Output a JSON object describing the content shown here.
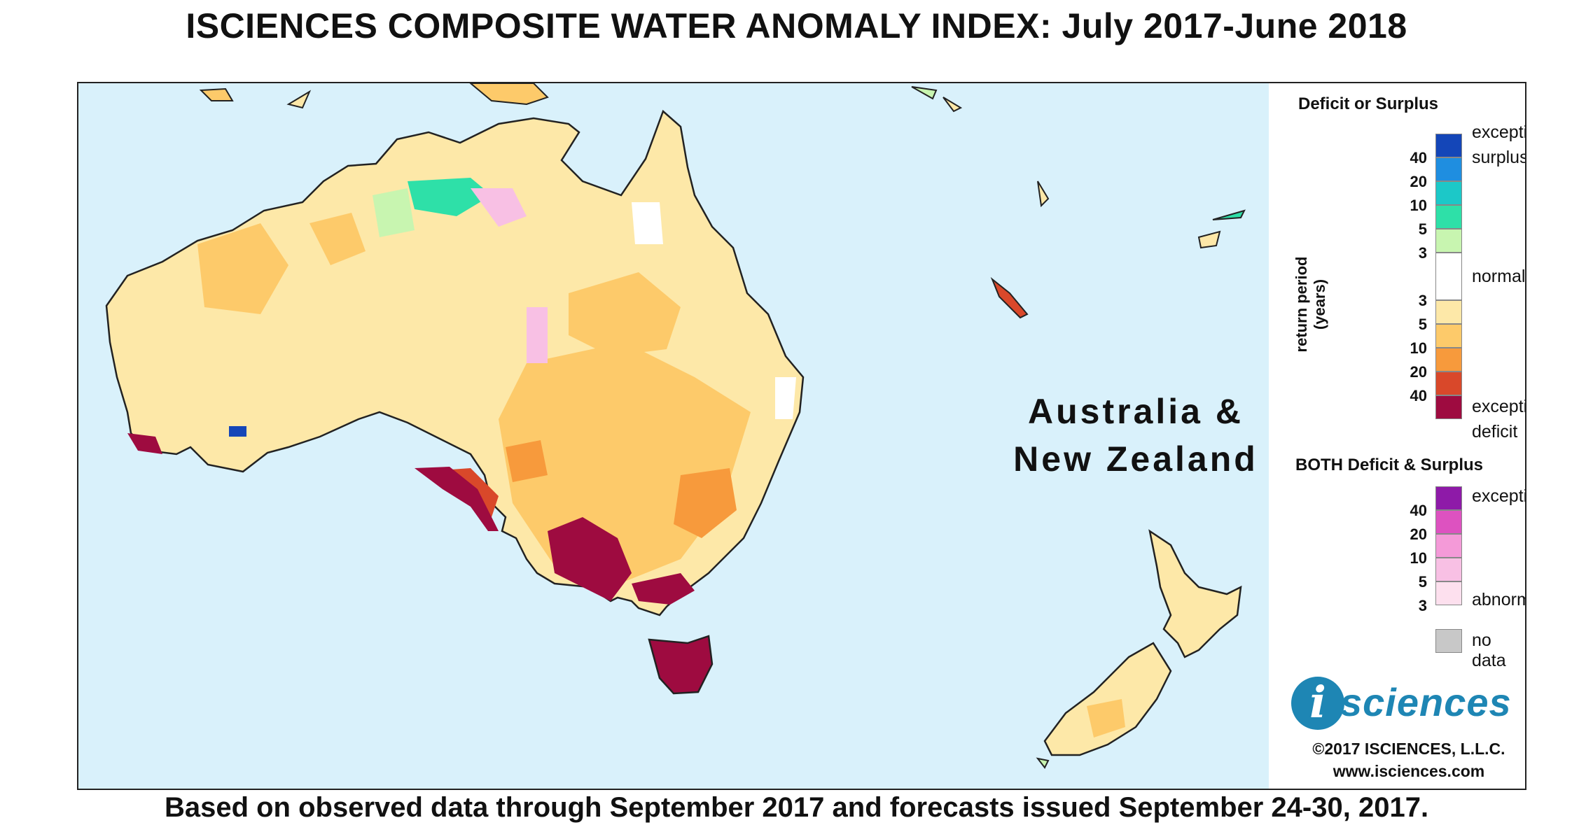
{
  "title": "ISCIENCES COMPOSITE WATER ANOMALY INDEX: July 2017-June 2018",
  "footer": "Based on observed data through September 2017 and forecasts issued September 24-30, 2017.",
  "map": {
    "region_label_line1": "Australia &",
    "region_label_line2": "New Zealand",
    "colors": {
      "ocean": "#d9f1fb",
      "coast": "#222222",
      "deficit_3": "#fde8a8",
      "deficit_5": "#fdca6a",
      "deficit_10": "#f79a3c",
      "deficit_20": "#d9482a",
      "deficit_40": "#9e0b40",
      "surplus_3": "#c8f5b0",
      "surplus_5": "#2ee0a8",
      "surplus_10": "#1cc8c8",
      "surplus_20": "#1f8ee0",
      "surplus_40": "#1446b8",
      "both_3": "#fde0ee",
      "both_5": "#f8c0e4",
      "both_10": "#f49ad8",
      "both_20": "#dd52c0",
      "both_40": "#8e1aa8",
      "normal": "#ffffff",
      "no_data": "#c8c8c8"
    }
  },
  "legend": {
    "deficit_surplus_heading": "Deficit or Surplus",
    "axis_label": "return period (years)",
    "exceptional_surplus_line1": "exceptional",
    "exceptional_surplus_line2": "surplus",
    "normal_label": "normal",
    "exceptional_deficit_line1": "exceptional",
    "exceptional_deficit_line2": "deficit",
    "surplus_ticks": [
      "40",
      "20",
      "10",
      "5",
      "3"
    ],
    "deficit_ticks": [
      "3",
      "5",
      "10",
      "20",
      "40"
    ],
    "both_heading": "BOTH Deficit & Surplus",
    "both_exceptional": "exceptional",
    "both_abnormal": "abnormal",
    "both_ticks": [
      "40",
      "20",
      "10",
      "5",
      "3"
    ],
    "no_data_label": "no data"
  },
  "logo": {
    "letter": "i",
    "word": "sciences"
  },
  "copyright": "©2017 ISCIENCES, L.L.C.",
  "website": "www.isciences.com"
}
